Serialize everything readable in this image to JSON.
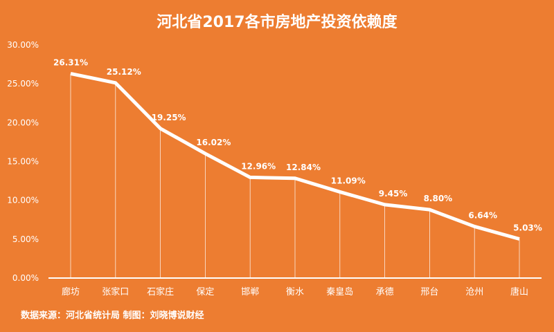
{
  "chart_data": {
    "type": "line",
    "title": "河北省2017各市房地产投资依赖度",
    "categories": [
      "廊坊",
      "张家口",
      "石家庄",
      "保定",
      "邯郸",
      "衡水",
      "秦皇岛",
      "承德",
      "邢台",
      "沧州",
      "唐山"
    ],
    "values": [
      26.31,
      25.12,
      19.25,
      16.02,
      12.96,
      12.84,
      11.09,
      9.45,
      8.8,
      6.64,
      5.03
    ],
    "data_labels": [
      "26.31%",
      "25.12%",
      "19.25%",
      "16.02%",
      "12.96%",
      "12.84%",
      "11.09%",
      "9.45%",
      "8.80%",
      "6.64%",
      "5.03%"
    ],
    "ylim": [
      0,
      30
    ],
    "yticks": [
      0,
      5,
      10,
      15,
      20,
      25,
      30
    ],
    "ytick_labels": [
      "0.00%",
      "5.00%",
      "10.00%",
      "15.00%",
      "20.00%",
      "25.00%",
      "30.00%"
    ],
    "grid": false,
    "drop_lines": true,
    "colors": {
      "background": "#ED7D31",
      "line": "#FFFFFF",
      "text": "#FFFFFF"
    }
  },
  "footer": {
    "source": "数据来源：河北省统计局 制图：刘晓博说财经"
  }
}
